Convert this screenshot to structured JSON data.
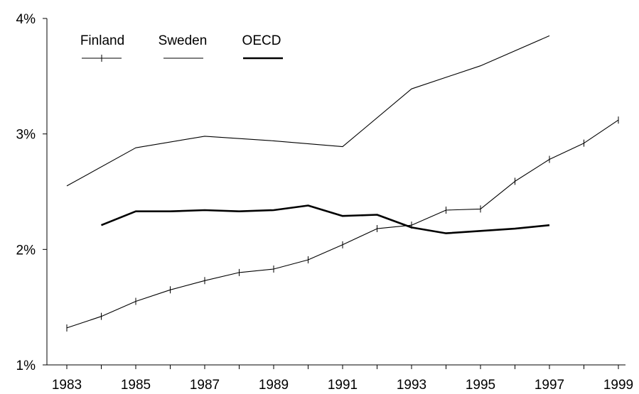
{
  "chart_data": {
    "type": "line",
    "title": "",
    "xlabel": "",
    "ylabel": "",
    "xlim": [
      1983,
      1999
    ],
    "ylim": [
      1,
      4
    ],
    "x_ticks": [
      1983,
      1985,
      1987,
      1989,
      1991,
      1993,
      1995,
      1997,
      1999
    ],
    "x_tick_labels": [
      "1983",
      "1985",
      "1987",
      "1989",
      "1991",
      "1993",
      "1995",
      "1997",
      "1999"
    ],
    "y_ticks": [
      1,
      2,
      3,
      4
    ],
    "y_tick_labels": [
      "1%",
      "2%",
      "3%",
      "4%"
    ],
    "grid": false,
    "legend_position": "top-left",
    "series": [
      {
        "name": "Finland",
        "marker": "tick",
        "stroke": "thin",
        "color": "#000000",
        "x": [
          1983,
          1984,
          1985,
          1986,
          1987,
          1988,
          1989,
          1990,
          1991,
          1992,
          1993,
          1994,
          1995,
          1996,
          1997,
          1998,
          1999
        ],
        "y": [
          1.32,
          1.42,
          1.55,
          1.65,
          1.73,
          1.8,
          1.83,
          1.91,
          2.04,
          2.18,
          2.21,
          2.34,
          2.35,
          2.59,
          2.78,
          2.92,
          3.12
        ]
      },
      {
        "name": "Sweden",
        "marker": "none",
        "stroke": "thin",
        "color": "#000000",
        "x": [
          1983,
          1985,
          1987,
          1989,
          1991,
          1993,
          1995,
          1997
        ],
        "y": [
          2.55,
          2.88,
          2.98,
          2.94,
          2.89,
          3.39,
          3.59,
          3.85
        ]
      },
      {
        "name": "OECD",
        "marker": "none",
        "stroke": "thick",
        "color": "#000000",
        "x": [
          1984,
          1985,
          1986,
          1987,
          1988,
          1989,
          1990,
          1991,
          1992,
          1993,
          1994,
          1995,
          1996,
          1997
        ],
        "y": [
          2.21,
          2.33,
          2.33,
          2.34,
          2.33,
          2.34,
          2.38,
          2.29,
          2.3,
          2.19,
          2.14,
          2.16,
          2.18,
          2.21
        ]
      }
    ]
  }
}
